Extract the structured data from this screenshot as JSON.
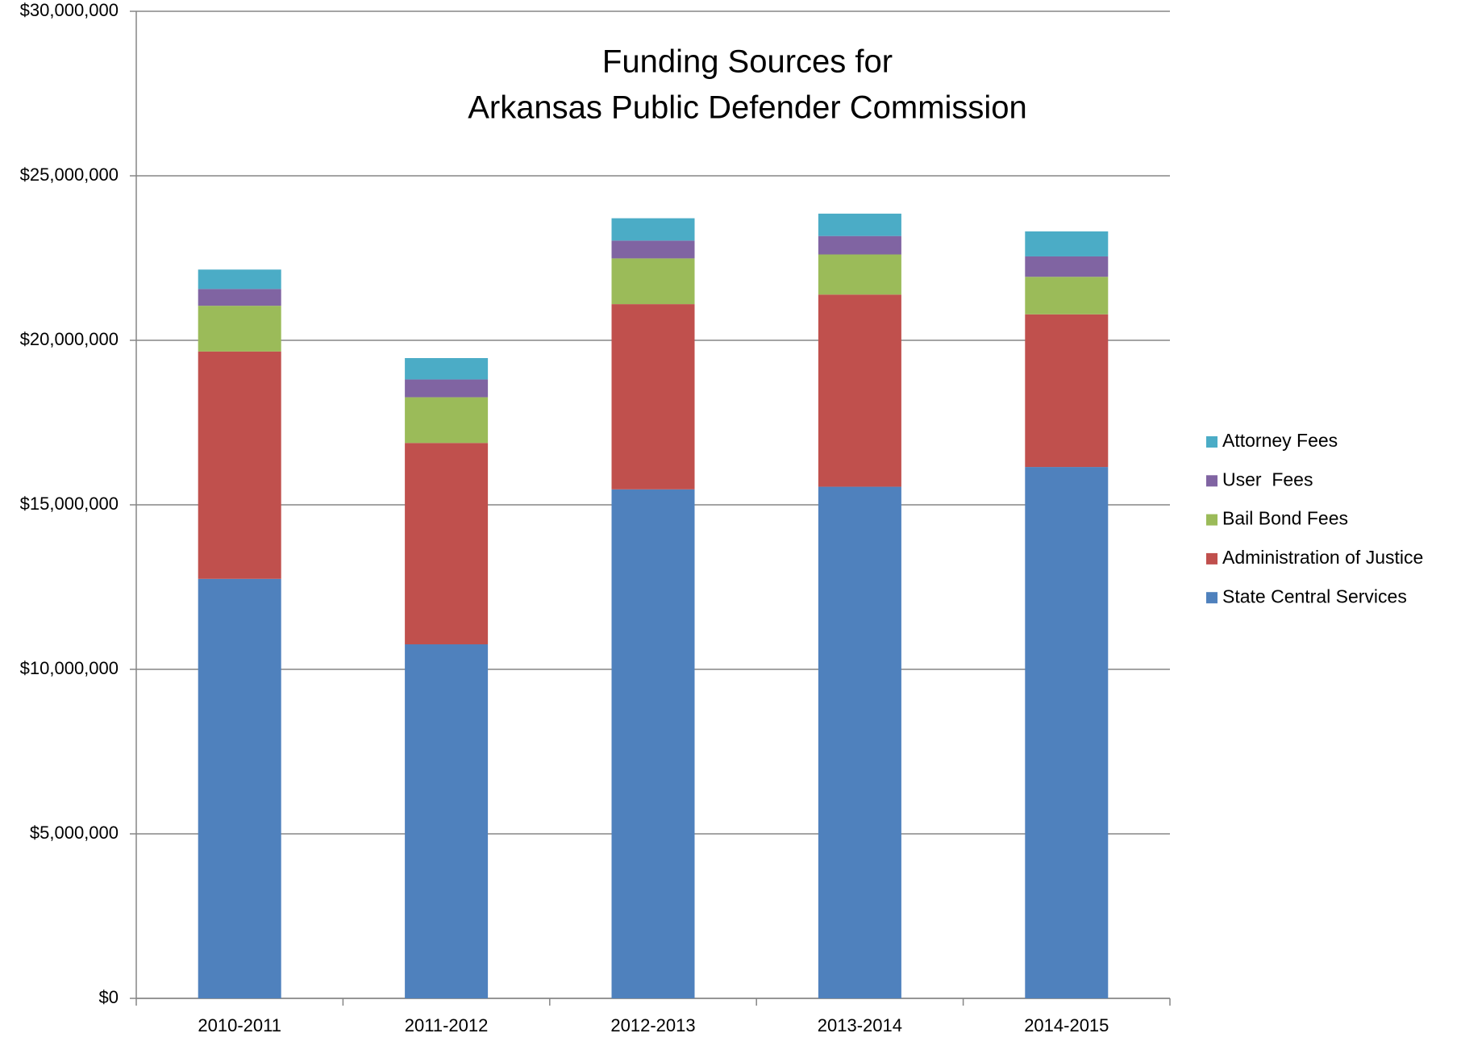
{
  "chart_data": {
    "type": "stacked_bar",
    "title": [
      "Funding Sources for",
      "Arkansas Public Defender Commission"
    ],
    "categories": [
      "2010-2011",
      "2011-2012",
      "2012-2013",
      "2013-2014",
      "2014-2015"
    ],
    "series": [
      {
        "name": "State Central Services",
        "color": "#4f81bd",
        "values": [
          12750000,
          10760000,
          15470000,
          15550000,
          16150000
        ]
      },
      {
        "name": "Administration of Justice",
        "color": "#c0504d",
        "values": [
          6910000,
          6120000,
          5630000,
          5840000,
          4640000
        ]
      },
      {
        "name": "Bail Bond Fees",
        "color": "#9bbb59",
        "values": [
          1390000,
          1390000,
          1390000,
          1220000,
          1140000
        ]
      },
      {
        "name": "User  Fees",
        "color": "#8064a2",
        "values": [
          510000,
          540000,
          540000,
          560000,
          620000
        ]
      },
      {
        "name": "Attorney Fees",
        "color": "#4bacc6",
        "values": [
          590000,
          650000,
          680000,
          680000,
          760000
        ]
      }
    ],
    "ylim": [
      0,
      30000000
    ],
    "yticks": [
      {
        "value": 0,
        "label": "$0"
      },
      {
        "value": 5000000,
        "label": "$5,000,000"
      },
      {
        "value": 10000000,
        "label": "$10,000,000"
      },
      {
        "value": 15000000,
        "label": "$15,000,000"
      },
      {
        "value": 20000000,
        "label": "$20,000,000"
      },
      {
        "value": 25000000,
        "label": "$25,000,000"
      },
      {
        "value": 30000000,
        "label": "$30,000,000"
      }
    ],
    "grid": true,
    "legend": "right"
  }
}
